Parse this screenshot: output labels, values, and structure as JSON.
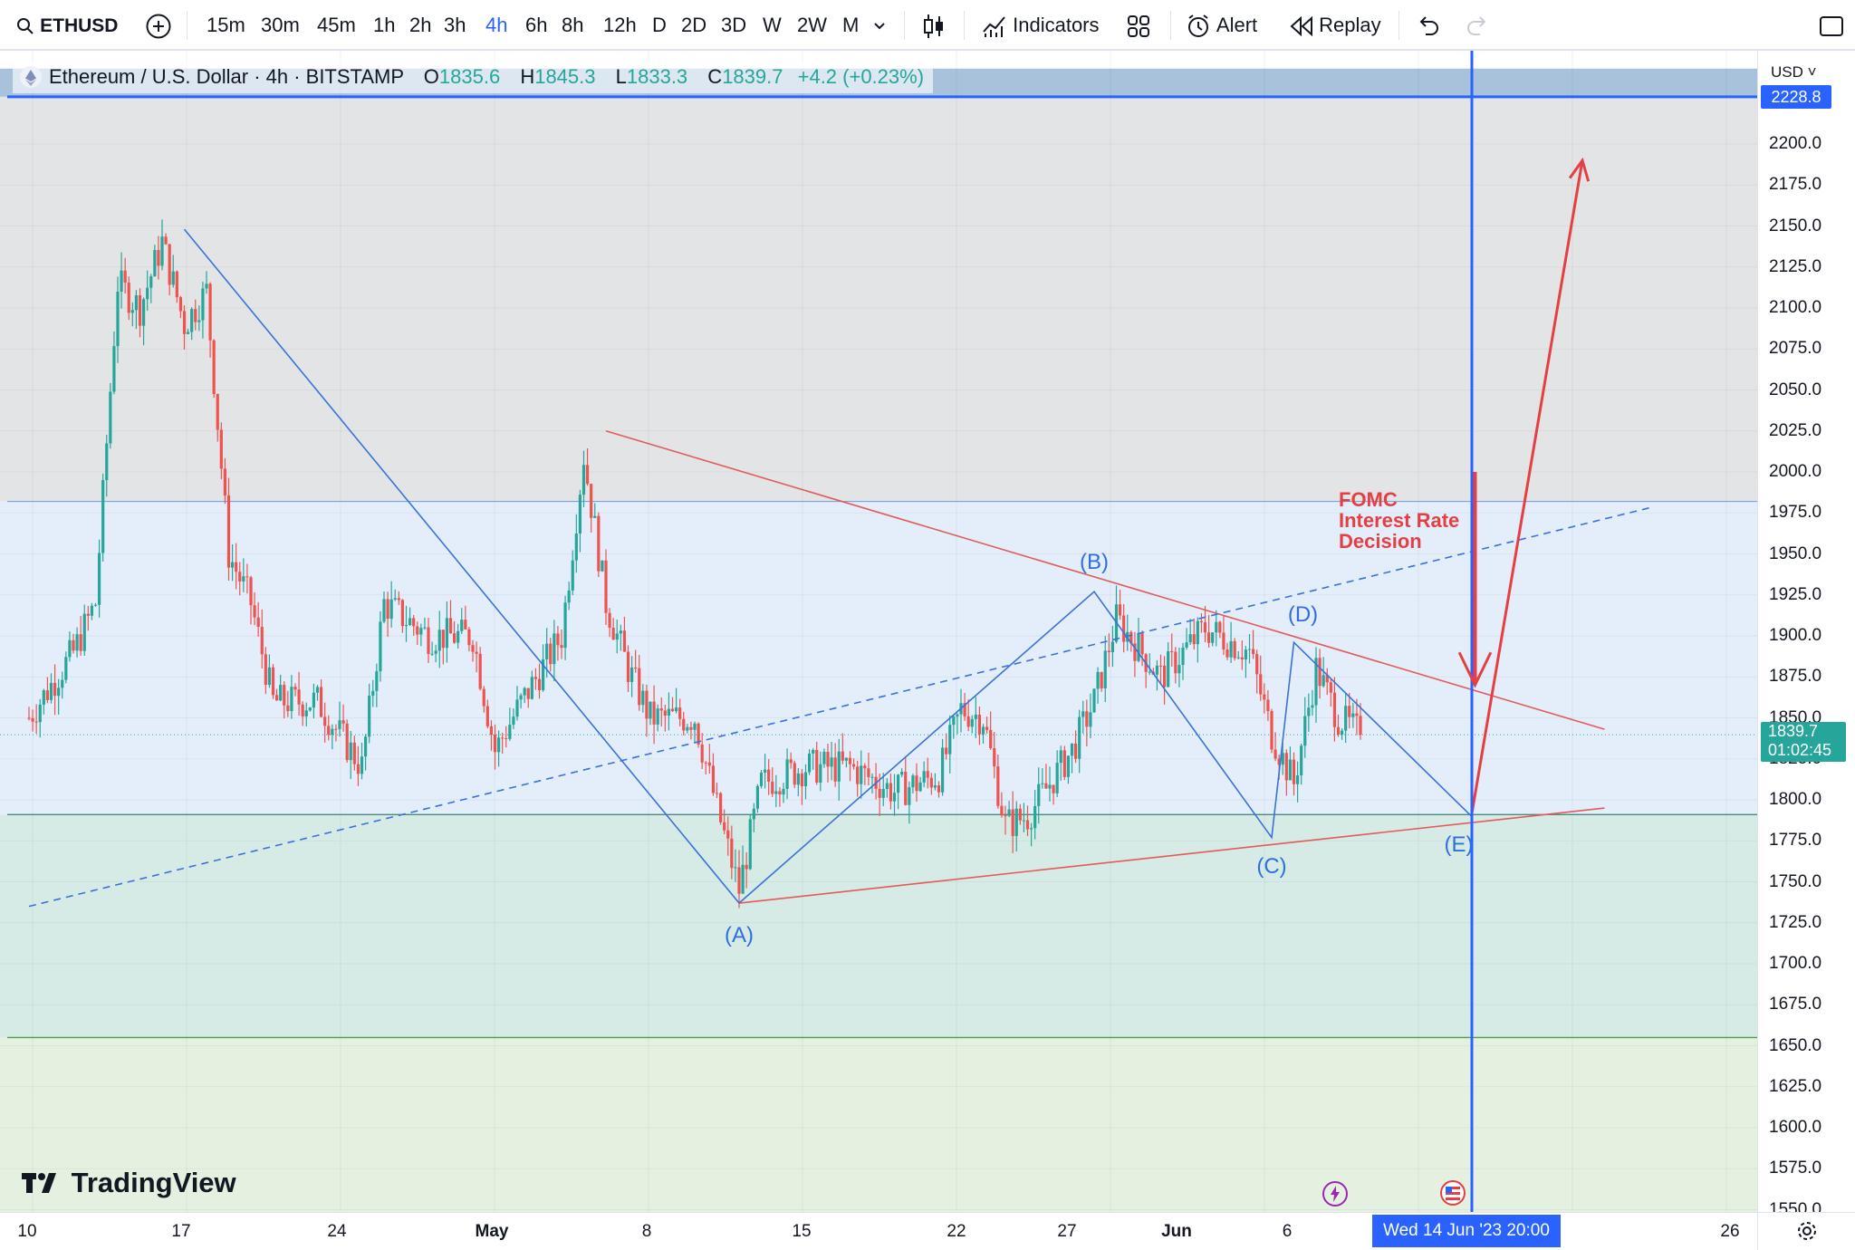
{
  "toolbar": {
    "symbol": "ETHUSD",
    "intervals": [
      "15m",
      "30m",
      "45m",
      "1h",
      "2h",
      "3h",
      "4h",
      "6h",
      "8h",
      "12h",
      "D",
      "2D",
      "3D",
      "W",
      "2W",
      "M"
    ],
    "active_interval": "4h",
    "indicators_label": "Indicators",
    "alert_label": "Alert",
    "replay_label": "Replay"
  },
  "legend": {
    "title": "Ethereum / U.S. Dollar · 4h · BITSTAMP",
    "open_key": "O",
    "open": "1835.6",
    "high_key": "H",
    "high": "1845.3",
    "low_key": "L",
    "low": "1833.3",
    "close_key": "C",
    "close": "1839.7",
    "change": "+4.2 (+0.23%)"
  },
  "price_axis": {
    "currency": "USD",
    "high_marker": "2228.8",
    "last_price": "1839.7",
    "countdown": "01:02:45"
  },
  "time_axis": {
    "cursor_label": "Wed 14 Jun '23   20:00"
  },
  "annotations": {
    "fomc_line1": "FOMC",
    "fomc_line2": "Interest Rate",
    "fomc_line3": "Decision",
    "waves": [
      "(A)",
      "(B)",
      "(C)",
      "(D)",
      "(E)"
    ]
  },
  "watermark": "TradingView",
  "colors": {
    "up": "#26a69a",
    "down": "#ef5350",
    "accent": "#2962ff",
    "trendline_red": "#e25b5b",
    "trendline_blue": "#3a72d8"
  },
  "chart_data": {
    "type": "candlestick",
    "symbol": "ETHUSD",
    "interval": "4h",
    "exchange": "BITSTAMP",
    "y_range": [
      1537,
      2246
    ],
    "y_ticks": [
      2200,
      2175,
      2150,
      2125,
      2100,
      2075,
      2050,
      2025,
      2000,
      1975,
      1950,
      1925,
      1900,
      1875,
      1850,
      1825,
      1800,
      1775,
      1750,
      1725,
      1700,
      1675,
      1650,
      1625,
      1600,
      1575,
      1550
    ],
    "x_ticks": [
      "10",
      "17",
      "24",
      "May",
      "8",
      "15",
      "22",
      "27",
      "Jun",
      "6",
      "26"
    ],
    "zones": [
      {
        "from": 2228.8,
        "to": 2246,
        "color": "#a9c2dc"
      },
      {
        "from": 1982,
        "to": 2228.8,
        "color": "#e3e4e6"
      },
      {
        "from": 1791,
        "to": 1982,
        "color": "#e3eefa"
      },
      {
        "from": 1655,
        "to": 1791,
        "color": "#d6ebe6"
      },
      {
        "from": 1537,
        "to": 1655,
        "color": "#e4f1e0"
      }
    ],
    "price_path": [
      {
        "d": "04-10",
        "p": 1850
      },
      {
        "d": "04-12",
        "p": 1890
      },
      {
        "d": "04-13",
        "p": 1920
      },
      {
        "d": "04-14",
        "p": 2115
      },
      {
        "d": "04-15",
        "p": 2100
      },
      {
        "d": "04-16",
        "p": 2140
      },
      {
        "d": "04-17",
        "p": 2090
      },
      {
        "d": "04-18",
        "p": 2110
      },
      {
        "d": "04-19",
        "p": 1950
      },
      {
        "d": "04-20",
        "p": 1920
      },
      {
        "d": "04-21",
        "p": 1860
      },
      {
        "d": "04-23",
        "p": 1860
      },
      {
        "d": "04-25",
        "p": 1820
      },
      {
        "d": "04-26",
        "p": 1920
      },
      {
        "d": "04-28",
        "p": 1900
      },
      {
        "d": "04-30",
        "p": 1900
      },
      {
        "d": "05-01",
        "p": 1830
      },
      {
        "d": "05-02",
        "p": 1855
      },
      {
        "d": "05-04",
        "p": 1900
      },
      {
        "d": "05-05",
        "p": 2010
      },
      {
        "d": "05-06",
        "p": 1920
      },
      {
        "d": "05-07",
        "p": 1880
      },
      {
        "d": "05-08",
        "p": 1850
      },
      {
        "d": "05-10",
        "p": 1850
      },
      {
        "d": "05-11",
        "p": 1795
      },
      {
        "d": "05-12",
        "p": 1745
      },
      {
        "d": "05-13",
        "p": 1810
      },
      {
        "d": "05-15",
        "p": 1820
      },
      {
        "d": "05-17",
        "p": 1820
      },
      {
        "d": "05-19",
        "p": 1805
      },
      {
        "d": "05-21",
        "p": 1815
      },
      {
        "d": "05-22",
        "p": 1855
      },
      {
        "d": "05-23",
        "p": 1850
      },
      {
        "d": "05-24",
        "p": 1785
      },
      {
        "d": "05-25",
        "p": 1790
      },
      {
        "d": "05-27",
        "p": 1830
      },
      {
        "d": "05-28",
        "p": 1860
      },
      {
        "d": "05-29",
        "p": 1910
      },
      {
        "d": "05-31",
        "p": 1875
      },
      {
        "d": "06-02",
        "p": 1905
      },
      {
        "d": "06-04",
        "p": 1890
      },
      {
        "d": "06-05",
        "p": 1840
      },
      {
        "d": "06-06",
        "p": 1810
      },
      {
        "d": "06-07",
        "p": 1880
      },
      {
        "d": "06-08",
        "p": 1850
      },
      {
        "d": "06-09",
        "p": 1840
      }
    ],
    "trendlines": [
      {
        "color": "red",
        "from": {
          "d": "05-06",
          "p": 2025
        },
        "to": {
          "d": "06-20",
          "p": 1843
        }
      },
      {
        "color": "red",
        "from": {
          "d": "05-12",
          "p": 1737
        },
        "to": {
          "d": "06-20",
          "p": 1795
        }
      },
      {
        "color": "blue",
        "from": {
          "d": "04-17",
          "p": 2148
        },
        "to": {
          "d": "05-12",
          "p": 1737
        }
      },
      {
        "color": "blue",
        "style": "dashed",
        "from": {
          "d": "04-10",
          "p": 1735
        },
        "to": {
          "d": "06-22",
          "p": 1978
        }
      }
    ],
    "waves": [
      {
        "label": "(A)",
        "d": "05-12",
        "p": 1737
      },
      {
        "label": "(B)",
        "d": "05-28",
        "p": 1927
      },
      {
        "label": "(C)",
        "d": "06-05",
        "p": 1777
      },
      {
        "label": "(D)",
        "d": "06-06",
        "p": 1896
      },
      {
        "label": "(E)",
        "d": "06-14",
        "p": 1790
      }
    ],
    "projection": {
      "from": {
        "d": "06-14",
        "p": 1790
      },
      "to": {
        "d": "06-19",
        "p": 2190
      }
    },
    "event_arrow": {
      "d": "06-14",
      "from": 2000,
      "to": 1870
    },
    "cursor_date": "06-14",
    "high_marker_price": 2228.8,
    "last_price": 1839.7
  }
}
